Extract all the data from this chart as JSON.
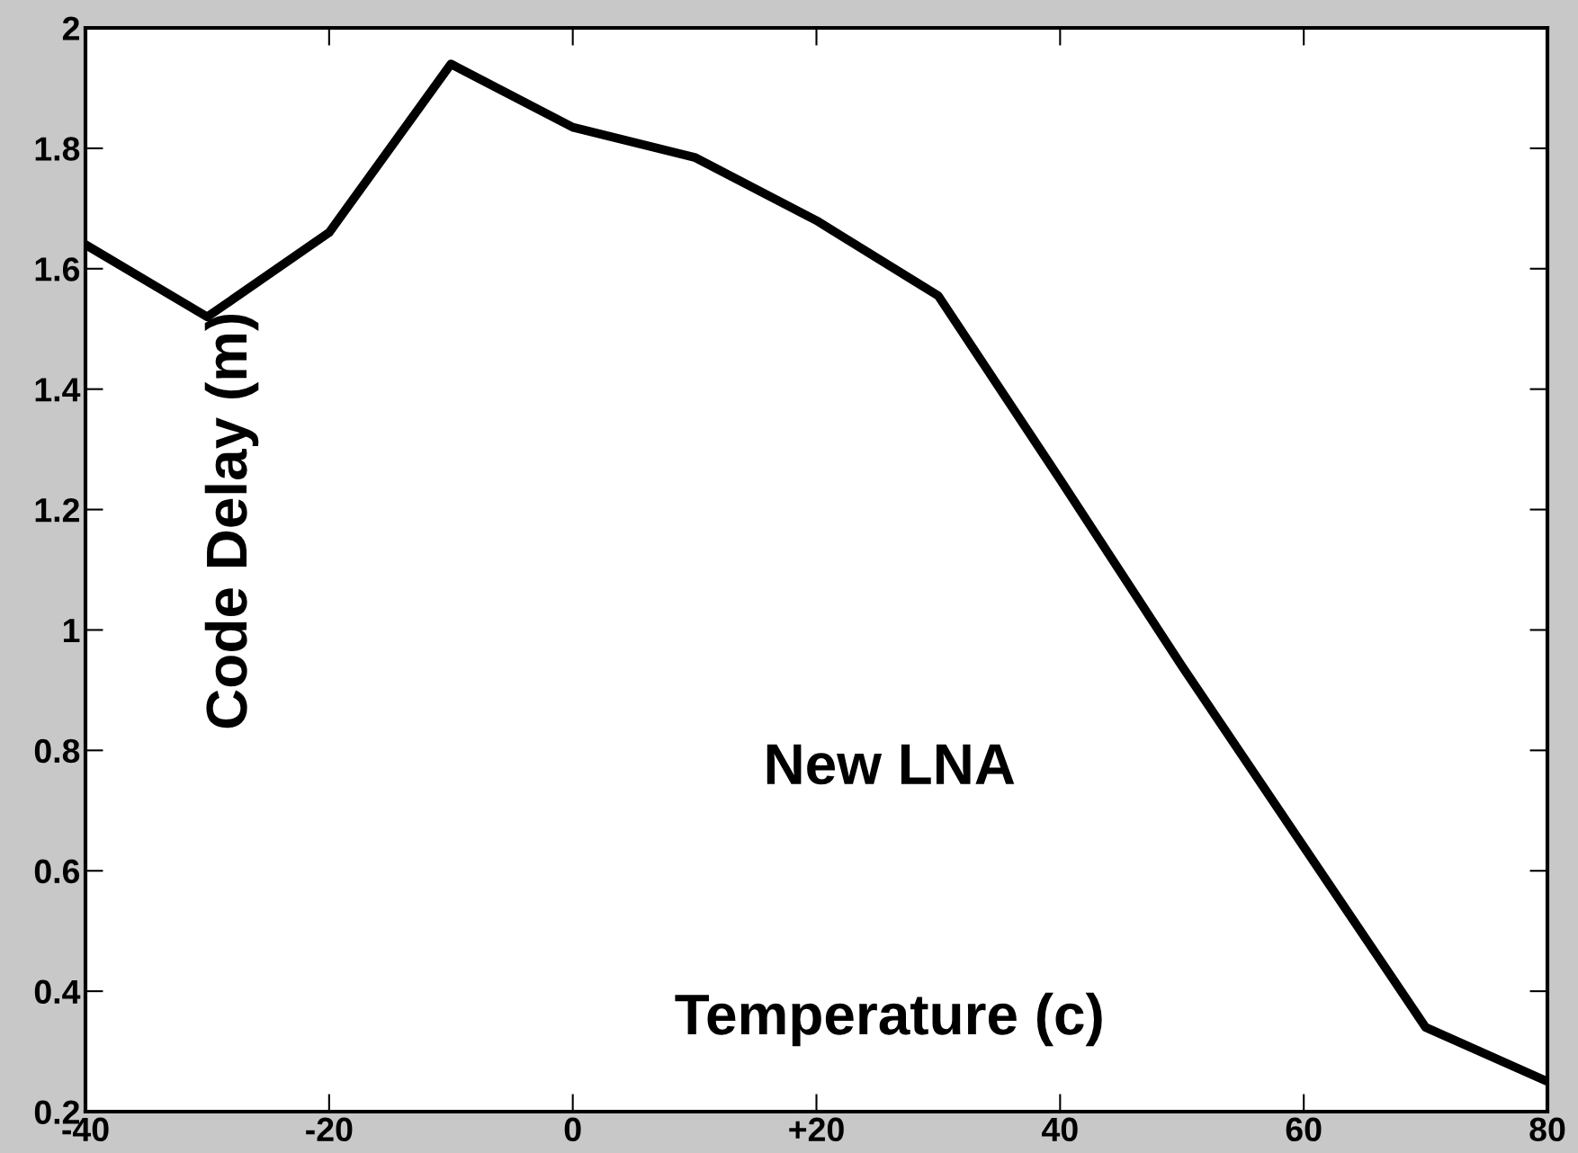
{
  "chart_data": {
    "type": "line",
    "title": "New LNA",
    "xlabel": "Temperature (c)",
    "ylabel": "Code Delay (m)",
    "x": [
      -40,
      -30,
      -20,
      -10,
      0,
      10,
      20,
      30,
      40,
      50,
      60,
      70,
      80
    ],
    "series": [
      {
        "color": "#000000",
        "values": [
          1.64,
          1.52,
          1.66,
          1.94,
          1.835,
          1.785,
          1.68,
          1.555,
          1.25,
          0.94,
          0.64,
          0.34,
          0.25
        ]
      }
    ],
    "xlim": [
      -40,
      80
    ],
    "xticks": [
      -40,
      -20,
      0,
      {
        "value": 20,
        "label": "+20"
      },
      40,
      60,
      80
    ],
    "ylim": [
      0.2,
      2
    ],
    "yticks": [
      0.2,
      0.4,
      0.6,
      0.8,
      1,
      1.2,
      1.4,
      1.6,
      1.8,
      2
    ],
    "grid": false,
    "legend": false,
    "marker": "none",
    "line_style": "solid"
  }
}
